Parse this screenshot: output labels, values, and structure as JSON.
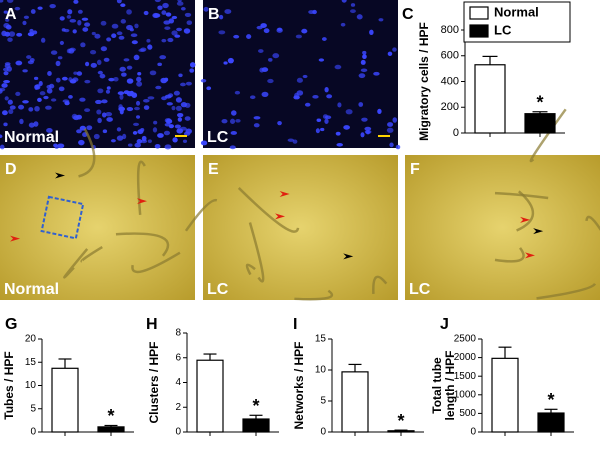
{
  "images": [
    {
      "panel": "A",
      "label": "Normal"
    },
    {
      "panel": "B",
      "label": "LC"
    },
    {
      "panel": "D",
      "label": "Normal"
    },
    {
      "panel": "E",
      "label": "LC"
    },
    {
      "panel": "F",
      "label": "LC"
    }
  ],
  "chart_data": [
    {
      "type": "bar",
      "panel": "C",
      "ylabel": "Migratory cells / HPF",
      "values": [
        530,
        150
      ],
      "errors": [
        65,
        15
      ],
      "colors": [
        "#ffffff",
        "#000000"
      ],
      "legend": [
        "Normal",
        "LC"
      ],
      "annotation": "*",
      "ylim": [
        0,
        800
      ],
      "yticks": [
        0,
        200,
        400,
        600,
        800
      ]
    },
    {
      "type": "bar",
      "panel": "G",
      "ylabel": "Tubes / HPF",
      "values": [
        13.7,
        1.1
      ],
      "errors": [
        2,
        0.3
      ],
      "colors": [
        "#ffffff",
        "#000000"
      ],
      "annotation": "*",
      "ylim": [
        0,
        20
      ],
      "yticks": [
        0,
        5,
        10,
        15,
        20
      ]
    },
    {
      "type": "bar",
      "panel": "H",
      "ylabel": "Clusters / HPF",
      "values": [
        5.8,
        1.05
      ],
      "errors": [
        0.5,
        0.3
      ],
      "colors": [
        "#ffffff",
        "#000000"
      ],
      "annotation": "*",
      "ylim": [
        0,
        8
      ],
      "yticks": [
        0,
        2,
        4,
        6,
        8
      ]
    },
    {
      "type": "bar",
      "panel": "I",
      "ylabel": "Networks / HPF",
      "values": [
        9.7,
        0.2
      ],
      "errors": [
        1.2,
        0.1
      ],
      "colors": [
        "#ffffff",
        "#000000"
      ],
      "annotation": "*",
      "ylim": [
        0,
        15
      ],
      "yticks": [
        0,
        5,
        10,
        15
      ]
    },
    {
      "type": "bar",
      "panel": "J",
      "ylabel": [
        "Total tube",
        "length / HPF"
      ],
      "values": [
        1980,
        510
      ],
      "errors": [
        300,
        100
      ],
      "colors": [
        "#ffffff",
        "#000000"
      ],
      "annotation": "*",
      "ylim": [
        0,
        2500
      ],
      "yticks": [
        0,
        500,
        1000,
        1500,
        2000,
        2500
      ]
    }
  ]
}
